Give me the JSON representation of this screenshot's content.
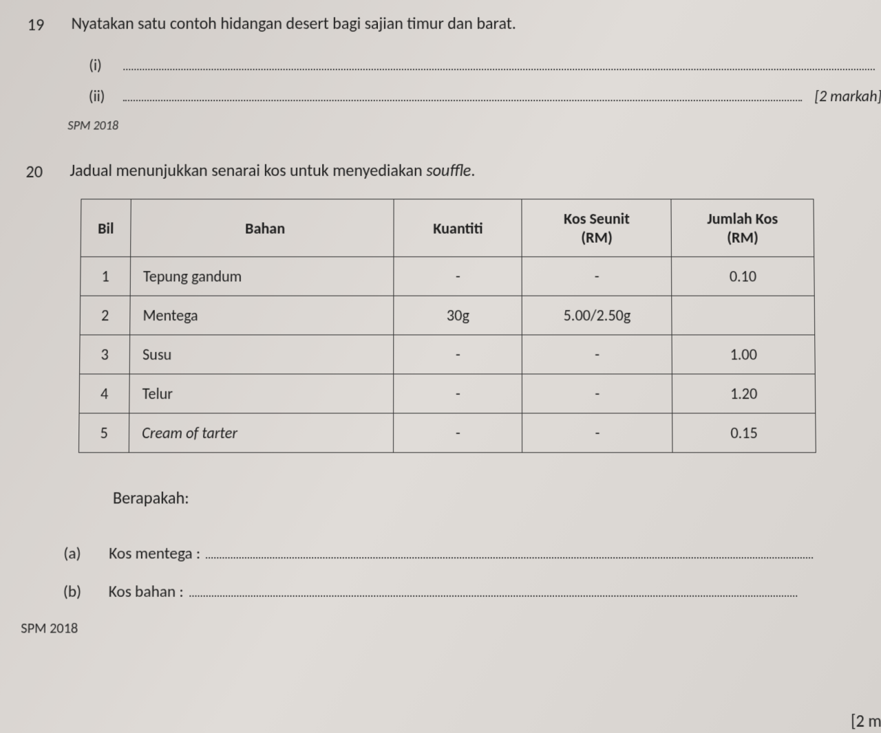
{
  "q19": {
    "number": "19",
    "text": "Nyatakan satu contoh hidangan desert bagi sajian timur dan barat.",
    "items": {
      "i": "(i)",
      "ii": "(ii)"
    },
    "marks": "[2 markah]",
    "spm": "SPM 2018"
  },
  "q20": {
    "number": "20",
    "text_prefix": "Jadual menunjukkan senarai kos untuk menyediakan ",
    "text_italic": "souffle",
    "text_suffix": ".",
    "berapakah": "Berapakah:",
    "parts": {
      "a": {
        "label": "(a)",
        "text": "Kos mentega :"
      },
      "b": {
        "label": "(b)",
        "text": "Kos bahan :"
      }
    },
    "spm": "SPM 2018",
    "bottom_marks": "[2 m"
  },
  "table": {
    "headers": {
      "bil": "Bil",
      "bahan": "Bahan",
      "kuantiti": "Kuantiti",
      "seunit_line1": "Kos Seunit",
      "seunit_line2": "(RM)",
      "jumlah_line1": "Jumlah Kos",
      "jumlah_line2": "(RM)"
    },
    "rows": [
      {
        "bil": "1",
        "bahan": "Tepung gandum",
        "bahan_italic": false,
        "kuantiti": "-",
        "seunit": "-",
        "jumlah": "0.10"
      },
      {
        "bil": "2",
        "bahan": "Mentega",
        "bahan_italic": false,
        "kuantiti": "30g",
        "seunit": "5.00/2.50g",
        "jumlah": ""
      },
      {
        "bil": "3",
        "bahan": "Susu",
        "bahan_italic": false,
        "kuantiti": "-",
        "seunit": "-",
        "jumlah": "1.00"
      },
      {
        "bil": "4",
        "bahan": "Telur",
        "bahan_italic": false,
        "kuantiti": "-",
        "seunit": "-",
        "jumlah": "1.20"
      },
      {
        "bil": "5",
        "bahan": "Cream of tarter",
        "bahan_italic": true,
        "kuantiti": "-",
        "seunit": "-",
        "jumlah": "0.15"
      }
    ],
    "style": {
      "border_color": "#333333",
      "font_size": 22,
      "header_fontweight": 600,
      "col_widths": {
        "bil": 70,
        "bahan": 370,
        "kuantiti": 180,
        "seunit": 210,
        "jumlah": 200
      }
    }
  },
  "colors": {
    "background": "#d8d4d0",
    "text": "#1e1e1e",
    "dotted_line": "#444444"
  }
}
